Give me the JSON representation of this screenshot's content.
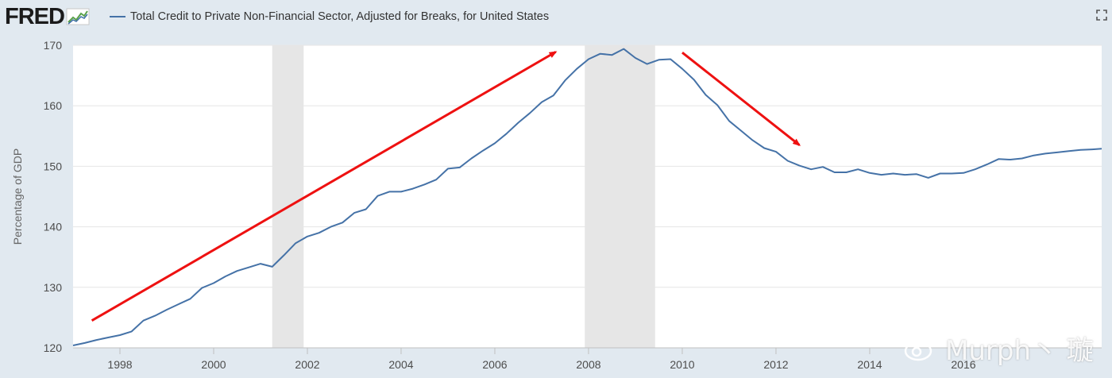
{
  "header": {
    "logo_text": "FRED",
    "series_title": "Total Credit to Private Non-Financial Sector, Adjusted for Breaks, for United States"
  },
  "icons": {
    "logo_chart": "fred-chart-icon",
    "expand": "expand-icon",
    "watermark": "weibo-icon"
  },
  "watermark": {
    "text": "Murph丶 璇"
  },
  "colors": {
    "line": "#4572a7",
    "recession": "#e6e6e6",
    "arrow": "#ee1111",
    "grid": "#e6e6e6",
    "background": "#e1e9f0",
    "plot": "#ffffff"
  },
  "chart_data": {
    "type": "line",
    "title": "Total Credit to Private Non-Financial Sector, Adjusted for Breaks, for United States",
    "xlabel": "",
    "ylabel": "Percentage of GDP",
    "xlim": [
      1997.0,
      2018.95
    ],
    "ylim": [
      120,
      170
    ],
    "x_ticks": [
      1998,
      2000,
      2002,
      2004,
      2006,
      2008,
      2010,
      2012,
      2014,
      2016
    ],
    "x_tick_labels": [
      "1998",
      "2000",
      "2002",
      "2004",
      "2006",
      "2008",
      "2010",
      "2012",
      "2014",
      "2016"
    ],
    "y_ticks": [
      120,
      130,
      140,
      150,
      160,
      170
    ],
    "y_tick_labels": [
      "120",
      "130",
      "140",
      "150",
      "160",
      "170"
    ],
    "grid": true,
    "recessions": [
      [
        2001.25,
        2001.92
      ],
      [
        2007.92,
        2009.42
      ]
    ],
    "annotations": [
      {
        "type": "arrow",
        "color": "#ee1111",
        "from": [
          1997.4,
          124.5
        ],
        "to": [
          2007.3,
          168.9
        ]
      },
      {
        "type": "arrow",
        "color": "#ee1111",
        "from": [
          2010.0,
          168.8
        ],
        "to": [
          2012.5,
          153.5
        ]
      }
    ],
    "series": [
      {
        "name": "Total Credit to Private Non-Financial Sector, Adjusted for Breaks, for United States",
        "x": [
          1997.0,
          1997.25,
          1997.5,
          1997.75,
          1998.0,
          1998.25,
          1998.5,
          1998.75,
          1999.0,
          1999.25,
          1999.5,
          1999.75,
          2000.0,
          2000.25,
          2000.5,
          2000.75,
          2001.0,
          2001.25,
          2001.5,
          2001.75,
          2002.0,
          2002.25,
          2002.5,
          2002.75,
          2003.0,
          2003.25,
          2003.5,
          2003.75,
          2004.0,
          2004.25,
          2004.5,
          2004.75,
          2005.0,
          2005.25,
          2005.5,
          2005.75,
          2006.0,
          2006.25,
          2006.5,
          2006.75,
          2007.0,
          2007.25,
          2007.5,
          2007.75,
          2008.0,
          2008.25,
          2008.5,
          2008.75,
          2009.0,
          2009.25,
          2009.5,
          2009.75,
          2010.0,
          2010.25,
          2010.5,
          2010.75,
          2011.0,
          2011.25,
          2011.5,
          2011.75,
          2012.0,
          2012.25,
          2012.5,
          2012.75,
          2013.0,
          2013.25,
          2013.5,
          2013.75,
          2014.0,
          2014.25,
          2014.5,
          2014.75,
          2015.0,
          2015.25,
          2015.5,
          2015.75,
          2016.0,
          2016.25,
          2016.5,
          2016.75,
          2017.0,
          2017.25,
          2017.5,
          2017.75,
          2018.0,
          2018.25,
          2018.5,
          2018.75,
          2018.95
        ],
        "values": [
          120.4,
          120.8,
          121.3,
          121.7,
          122.1,
          122.7,
          124.5,
          125.3,
          126.3,
          127.2,
          128.1,
          129.9,
          130.7,
          131.8,
          132.7,
          133.3,
          133.9,
          133.4,
          135.3,
          137.3,
          138.4,
          139.0,
          140.0,
          140.7,
          142.3,
          142.9,
          145.1,
          145.8,
          145.8,
          146.3,
          147.0,
          147.8,
          149.6,
          149.8,
          151.3,
          152.6,
          153.8,
          155.4,
          157.2,
          158.8,
          160.6,
          161.7,
          164.2,
          166.1,
          167.7,
          168.6,
          168.4,
          169.4,
          167.9,
          166.9,
          167.6,
          167.7,
          166.1,
          164.3,
          161.8,
          160.1,
          157.5,
          155.9,
          154.3,
          153.0,
          152.4,
          150.9,
          150.1,
          149.5,
          149.9,
          149.0,
          149.0,
          149.5,
          148.9,
          148.6,
          148.8,
          148.6,
          148.7,
          148.1,
          148.8,
          148.8,
          148.9,
          149.5,
          150.3,
          151.2,
          151.1,
          151.3,
          151.8,
          152.1,
          152.3,
          152.5,
          152.7,
          152.8,
          152.9
        ]
      }
    ]
  }
}
